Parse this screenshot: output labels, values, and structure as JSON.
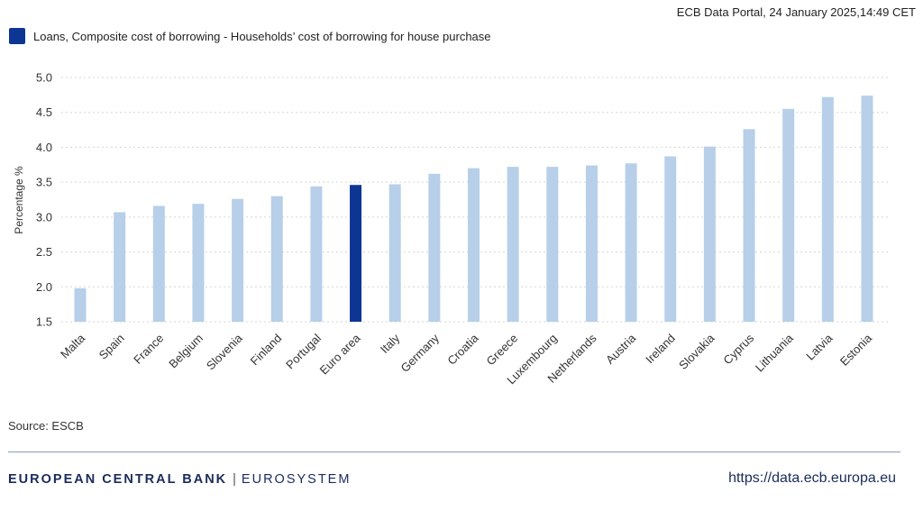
{
  "header": {
    "timestamp": "ECB Data Portal, 24 January 2025,14:49 CET"
  },
  "legend": {
    "label": "Loans, Composite cost of borrowing - Households’ cost of borrowing for house purchase",
    "color": "#0d3593"
  },
  "chart_data": {
    "type": "bar",
    "title": "",
    "xlabel": "",
    "ylabel": "Percentage %",
    "ylim": [
      1.5,
      5.0
    ],
    "yticks": [
      "1.5",
      "2.0",
      "2.5",
      "3.0",
      "3.5",
      "4.0",
      "4.5",
      "5.0"
    ],
    "grid": true,
    "legend_position": "top-left",
    "categories": [
      "Malta",
      "Spain",
      "France",
      "Belgium",
      "Slovenia",
      "Finland",
      "Portugal",
      "Euro area",
      "Italy",
      "Germany",
      "Croatia",
      "Greece",
      "Luxembourg",
      "Netherlands",
      "Austria",
      "Ireland",
      "Slovakia",
      "Cyprus",
      "Lithuania",
      "Latvia",
      "Estonia"
    ],
    "series": [
      {
        "name": "Loans, Composite cost of borrowing - Households’ cost of borrowing for house purchase",
        "values": [
          1.98,
          3.07,
          3.16,
          3.19,
          3.26,
          3.3,
          3.44,
          3.46,
          3.47,
          3.62,
          3.7,
          3.72,
          3.72,
          3.74,
          3.77,
          3.87,
          4.01,
          4.26,
          4.55,
          4.72,
          4.74
        ]
      }
    ],
    "bar_color": "#b7cfe9",
    "highlight_category": "Euro area",
    "highlight_color": "#0d3593"
  },
  "source": {
    "label": "Source: ESCB"
  },
  "footer": {
    "org_name": "EUROPEAN CENTRAL BANK",
    "separator": "|",
    "org_system": "EUROSYSTEM",
    "url": "https://data.ecb.europa.eu"
  }
}
